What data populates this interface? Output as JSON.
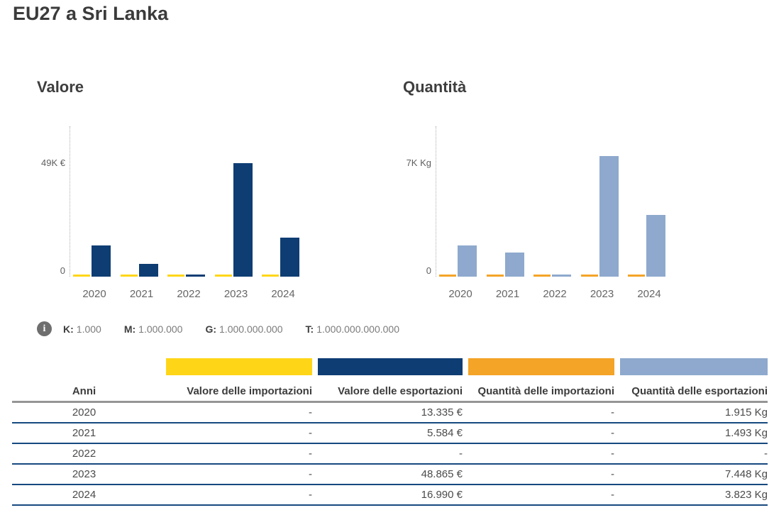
{
  "page": {
    "title": "EU27 a Sri Lanka"
  },
  "chart_data": [
    {
      "type": "bar",
      "title": "Valore",
      "unit": "€",
      "categories": [
        "2020",
        "2021",
        "2022",
        "2023",
        "2024"
      ],
      "series": [
        {
          "name": "Valore delle importazioni",
          "color": "#FFD617",
          "values": [
            null,
            null,
            null,
            null,
            null
          ]
        },
        {
          "name": "Valore delle esportazioni",
          "color": "#0E3D73",
          "values": [
            13335,
            5584,
            null,
            48865,
            16990
          ]
        }
      ],
      "axis": {
        "ref_label": "49K €",
        "ref_value": 49000,
        "zero_label": "0",
        "grid": "off",
        "ylim": [
          0,
          64000
        ]
      }
    },
    {
      "type": "bar",
      "title": "Quantità",
      "unit": "Kg",
      "categories": [
        "2020",
        "2021",
        "2022",
        "2023",
        "2024"
      ],
      "series": [
        {
          "name": "Quantità delle importazioni",
          "color": "#F4A427",
          "values": [
            null,
            null,
            null,
            null,
            null
          ]
        },
        {
          "name": "Quantità delle esportazioni",
          "color": "#8EA9CD",
          "values": [
            1915,
            1493,
            null,
            7448,
            3823
          ]
        }
      ],
      "axis": {
        "ref_label": "7K Kg",
        "ref_value": 7000,
        "zero_label": "0",
        "grid": "off",
        "ylim": [
          0,
          9200
        ]
      }
    }
  ],
  "info_legend": {
    "items": [
      {
        "prefix": "K:",
        "value": "1.000"
      },
      {
        "prefix": "M:",
        "value": "1.000.000"
      },
      {
        "prefix": "G:",
        "value": "1.000.000.000"
      },
      {
        "prefix": "T:",
        "value": "1.000.000.000.000"
      }
    ]
  },
  "table": {
    "headers": [
      "Anni",
      "Valore delle importazioni",
      "Valore delle esportazioni",
      "Quantità delle importazioni",
      "Quantità delle esportazioni"
    ],
    "legend_colors": [
      "#FFD617",
      "#0E3D73",
      "#F4A427",
      "#8EA9CD"
    ],
    "rows": [
      [
        "2020",
        "-",
        "13.335 €",
        "-",
        "1.915 Kg"
      ],
      [
        "2021",
        "-",
        "5.584 €",
        "-",
        "1.493 Kg"
      ],
      [
        "2022",
        "-",
        "-",
        "-",
        "-"
      ],
      [
        "2023",
        "-",
        "48.865 €",
        "-",
        "7.448 Kg"
      ],
      [
        "2024",
        "-",
        "16.990 €",
        "-",
        "3.823 Kg"
      ]
    ]
  },
  "colors": {
    "row_divider": "#17497f",
    "header_divider": "#959595",
    "axis_dotted": "#aeaeae",
    "text_dark": "#3c3c3c",
    "text_muted": "#666666"
  }
}
